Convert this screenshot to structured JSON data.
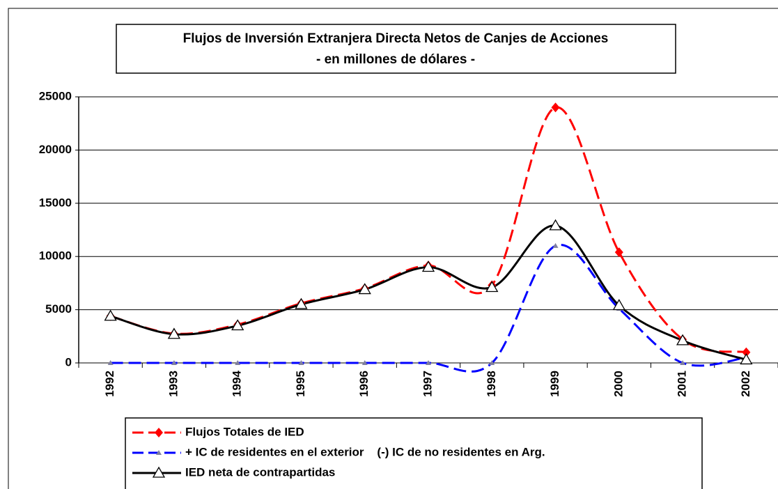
{
  "chart_data": {
    "type": "line",
    "title": "Flujos de Inversión Extranjera Directa Netos de Canjes de Acciones",
    "subtitle": "-  en millones de dólares  -",
    "categories": [
      "1992",
      "1993",
      "1994",
      "1995",
      "1996",
      "1997",
      "1998",
      "1999",
      "2000",
      "2001",
      "2002"
    ],
    "series": [
      {
        "name": "Flujos Totales de IED",
        "color": "#ff0000",
        "marker": "diamond",
        "dash": true,
        "values": [
          4400,
          2750,
          3600,
          5600,
          7000,
          9150,
          7300,
          24000,
          10400,
          2200,
          1000
        ]
      },
      {
        "name": "+ IC de residentes en el exterior    (-) IC de no residentes en Arg.",
        "color": "#0000ff",
        "marker": "small-triangle",
        "dash": true,
        "values": [
          0,
          0,
          0,
          0,
          0,
          0,
          0,
          11000,
          5100,
          0,
          500
        ]
      },
      {
        "name": "IED neta de contrapartidas",
        "color": "#000000",
        "marker": "open-triangle",
        "dash": false,
        "values": [
          4400,
          2700,
          3500,
          5500,
          6900,
          9000,
          7100,
          12900,
          5400,
          2100,
          300
        ]
      }
    ],
    "ylim": [
      0,
      25000
    ],
    "yticks": [
      0,
      5000,
      10000,
      15000,
      20000,
      25000
    ],
    "grid": true,
    "smooth": true
  }
}
